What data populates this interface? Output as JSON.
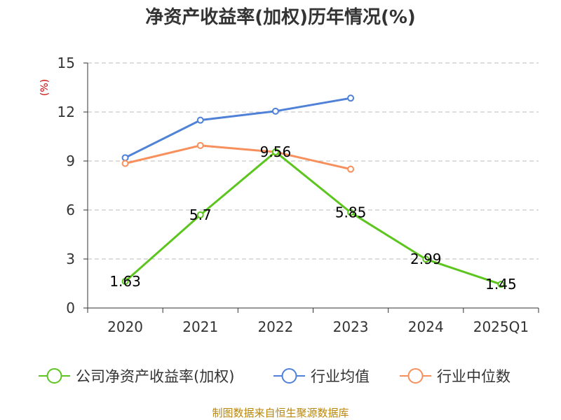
{
  "chart_data": {
    "type": "line",
    "title": "净资产收益率(加权)历年情况(%)",
    "ylabel": "(%)",
    "xlabel": "",
    "categories": [
      "2020",
      "2021",
      "2022",
      "2023",
      "2024",
      "2025Q1"
    ],
    "ylim": [
      0,
      15
    ],
    "yticks": [
      0,
      3,
      6,
      9,
      12,
      15
    ],
    "grid": true,
    "legend_position": "bottom",
    "series": [
      {
        "name": "公司净资产收益率(加权)",
        "color": "#5cc51e",
        "values": [
          1.63,
          5.7,
          9.56,
          5.85,
          2.99,
          1.45
        ],
        "labels": [
          "1.63",
          "5.7",
          "9.56",
          "5.85",
          "2.99",
          "1.45"
        ]
      },
      {
        "name": "行业均值",
        "color": "#4f81d9",
        "values": [
          9.2,
          11.5,
          12.05,
          12.85,
          null,
          null
        ]
      },
      {
        "name": "行业中位数",
        "color": "#f7905c",
        "values": [
          8.85,
          9.95,
          9.55,
          8.5,
          null,
          null
        ]
      }
    ]
  },
  "source": "制图数据来自恒生聚源数据库"
}
